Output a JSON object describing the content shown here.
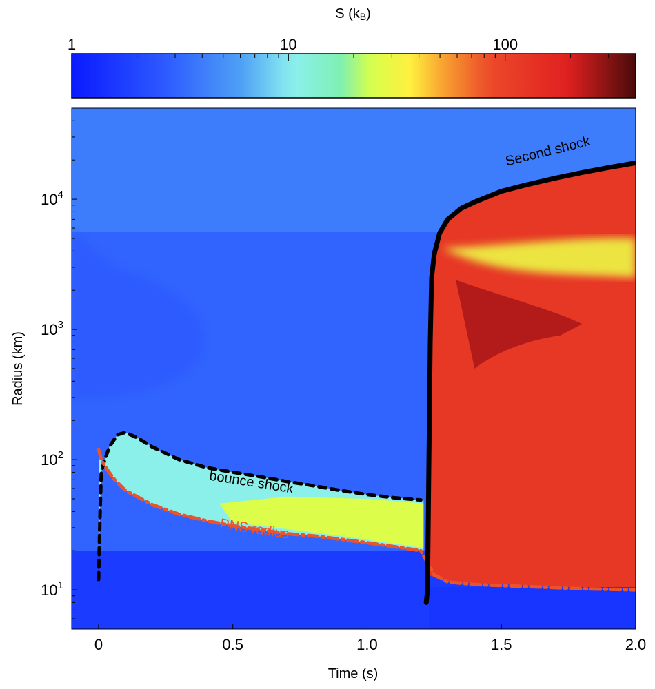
{
  "chart_data": {
    "type": "heatmap",
    "colorbar": {
      "label_main": "S (k",
      "label_sub": "B",
      "label_close": ")",
      "scale": "log",
      "range": [
        1,
        400
      ],
      "ticks": [
        {
          "value": 1,
          "label": "1"
        },
        {
          "value": 10,
          "label": "10"
        },
        {
          "value": 100,
          "label": "100"
        }
      ],
      "colormap": "jet"
    },
    "xaxis": {
      "label": "Time (s)",
      "range": [
        -0.1,
        2.0
      ],
      "scale": "linear",
      "ticks": [
        {
          "value": 0,
          "label": "0"
        },
        {
          "value": 0.5,
          "label": "0.5"
        },
        {
          "value": 1.0,
          "label": "1.0"
        },
        {
          "value": 1.5,
          "label": "1.5"
        },
        {
          "value": 2.0,
          "label": "2.0"
        }
      ]
    },
    "yaxis": {
      "label": "Radius (km)",
      "range": [
        5,
        50000
      ],
      "scale": "log",
      "ticks": [
        {
          "value": 10,
          "base": "10",
          "exp": "1"
        },
        {
          "value": 100,
          "base": "10",
          "exp": "2"
        },
        {
          "value": 1000,
          "base": "10",
          "exp": "3"
        },
        {
          "value": 10000,
          "base": "10",
          "exp": "4"
        }
      ]
    },
    "series": [
      {
        "name": "bounce shock",
        "style": "dashed",
        "color": "#000000",
        "x": [
          0.0,
          0.005,
          0.01,
          0.02,
          0.04,
          0.07,
          0.1,
          0.15,
          0.2,
          0.3,
          0.4,
          0.5,
          0.6,
          0.7,
          0.8,
          0.9,
          1.0,
          1.1,
          1.2
        ],
        "y": [
          12,
          35,
          80,
          95,
          125,
          155,
          162,
          145,
          125,
          100,
          87,
          80,
          74,
          68,
          63,
          58,
          54,
          51,
          49
        ]
      },
      {
        "name": "PNS radius",
        "style": "dashdot",
        "color": "#e8542e",
        "x": [
          0.0,
          0.01,
          0.03,
          0.06,
          0.1,
          0.2,
          0.3,
          0.4,
          0.5,
          0.6,
          0.7,
          0.8,
          0.9,
          1.0,
          1.1,
          1.2,
          1.25,
          1.3,
          1.4,
          1.5,
          1.6,
          1.7,
          1.8,
          1.9,
          2.0
        ],
        "y": [
          120,
          100,
          85,
          70,
          58,
          45,
          38,
          34,
          31,
          29,
          27,
          26,
          24.5,
          23,
          21.5,
          20,
          13,
          11.5,
          11,
          10.8,
          10.6,
          10.4,
          10.2,
          10.1,
          10
        ]
      },
      {
        "name": "Second shock",
        "style": "solid",
        "color": "#000000",
        "x": [
          1.22,
          1.225,
          1.23,
          1.235,
          1.24,
          1.25,
          1.27,
          1.3,
          1.35,
          1.4,
          1.5,
          1.6,
          1.7,
          1.8,
          1.9,
          2.0
        ],
        "y": [
          8,
          10,
          100,
          800,
          2500,
          3800,
          5500,
          7000,
          8500,
          9500,
          11500,
          13000,
          14500,
          16000,
          17500,
          19000
        ]
      }
    ],
    "annotations": [
      {
        "text": "Second shock",
        "x": 1.52,
        "y": 18000,
        "color": "#000000",
        "rotate": -14
      },
      {
        "text": "bounce shock",
        "x": 0.41,
        "y": 70,
        "color": "#000000",
        "rotate": 9
      },
      {
        "text": "PNS radius",
        "x": 0.45,
        "y": 30,
        "color": "#e8542e",
        "rotate": 9
      }
    ],
    "regions": [
      {
        "name": "ambient-envelope",
        "entropy": 4
      },
      {
        "name": "outer-envelope",
        "entropy": 3
      },
      {
        "name": "inner-core",
        "entropy": 1.5
      },
      {
        "name": "pre-shock-infall",
        "entropy": 2.5
      },
      {
        "name": "post-bounce-shocked",
        "entropy": 11
      },
      {
        "name": "post-bounce-shocked-hot",
        "entropy": 25
      },
      {
        "name": "explosion-ejecta",
        "entropy": 120
      },
      {
        "name": "explosion-ejecta-hottest",
        "entropy": 250
      },
      {
        "name": "ejecta-shell",
        "entropy": 30
      }
    ]
  }
}
